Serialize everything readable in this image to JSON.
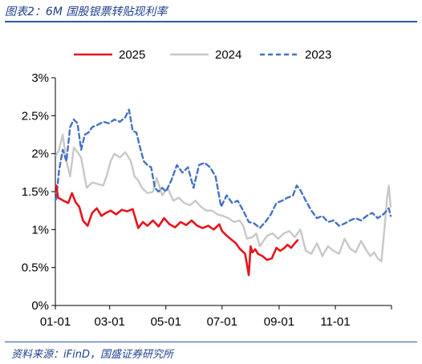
{
  "caption": "图表2：6M 国股银票转贴现利率",
  "source": "资料来源：iFinD，国盛证券研究所",
  "chart_data": {
    "type": "line",
    "title": "6M 国股银票转贴现利率",
    "xlabel": "",
    "ylabel": "",
    "x_tick_labels": [
      "01-01",
      "03-01",
      "05-01",
      "07-01",
      "09-01",
      "11-01"
    ],
    "x_tick_days": [
      0,
      59,
      120,
      181,
      243,
      304
    ],
    "xlim_days": [
      0,
      365
    ],
    "ylim": [
      0,
      3.0
    ],
    "y_ticks": [
      0,
      0.5,
      1.0,
      1.5,
      2.0,
      2.5,
      3.0
    ],
    "y_tick_labels": [
      "0%",
      "0.5%",
      "1%",
      "1.5%",
      "2%",
      "2.5%",
      "3%"
    ],
    "grid": false,
    "legend_position": "top",
    "series": [
      {
        "name": "2025",
        "color": "#e8141b",
        "style": "solid",
        "x": [
          1,
          3,
          6,
          9,
          14,
          18,
          22,
          26,
          30,
          35,
          40,
          45,
          50,
          55,
          60,
          66,
          72,
          78,
          84,
          90,
          95,
          100,
          106,
          112,
          118,
          124,
          130,
          136,
          142,
          148,
          154,
          160,
          166,
          172,
          178,
          181,
          186,
          192,
          196,
          200,
          206,
          210,
          212,
          214,
          217,
          220,
          225,
          230,
          235,
          240,
          244,
          248,
          252,
          256,
          260,
          263
        ],
        "values": [
          1.58,
          1.42,
          1.4,
          1.38,
          1.35,
          1.48,
          1.36,
          1.3,
          1.12,
          1.05,
          1.22,
          1.28,
          1.18,
          1.22,
          1.25,
          1.2,
          1.26,
          1.24,
          1.27,
          1.02,
          1.1,
          1.05,
          1.12,
          1.04,
          1.15,
          1.07,
          1.03,
          1.1,
          1.06,
          1.12,
          1.05,
          1.02,
          1.05,
          1.0,
          1.07,
          0.98,
          0.92,
          0.86,
          0.82,
          0.75,
          0.68,
          0.4,
          0.78,
          0.7,
          0.74,
          0.68,
          0.65,
          0.6,
          0.62,
          0.76,
          0.72,
          0.75,
          0.8,
          0.76,
          0.82,
          0.86
        ]
      },
      {
        "name": "2024",
        "color": "#c8c8c8",
        "style": "solid",
        "x": [
          1,
          4,
          8,
          12,
          16,
          20,
          24,
          28,
          34,
          40,
          46,
          52,
          56,
          60,
          64,
          70,
          76,
          82,
          86,
          90,
          94,
          100,
          106,
          110,
          116,
          122,
          128,
          134,
          140,
          146,
          152,
          158,
          164,
          170,
          176,
          182,
          188,
          194,
          200,
          204,
          208,
          214,
          218,
          222,
          226,
          230,
          236,
          242,
          248,
          254,
          260,
          266,
          272,
          278,
          284,
          290,
          296,
          302,
          308,
          314,
          320,
          326,
          332,
          338,
          342,
          346,
          350,
          354,
          358,
          360,
          362,
          364
        ],
        "values": [
          1.98,
          2.05,
          2.25,
          1.9,
          1.7,
          2.08,
          2.02,
          1.95,
          1.55,
          1.62,
          1.6,
          1.58,
          1.72,
          1.9,
          2.0,
          1.95,
          2.02,
          1.9,
          1.7,
          1.65,
          1.55,
          1.48,
          1.5,
          1.68,
          1.45,
          1.55,
          1.38,
          1.42,
          1.35,
          1.32,
          1.38,
          1.3,
          1.25,
          1.25,
          1.2,
          1.18,
          1.15,
          1.1,
          1.12,
          1.05,
          0.88,
          0.9,
          0.95,
          0.78,
          0.85,
          0.92,
          0.95,
          0.88,
          0.95,
          0.98,
          0.9,
          1.0,
          0.72,
          0.68,
          0.82,
          0.65,
          0.78,
          0.72,
          0.68,
          0.88,
          0.75,
          0.7,
          0.85,
          0.72,
          0.65,
          0.7,
          0.62,
          0.58,
          1.1,
          1.4,
          1.58,
          1.3
        ]
      },
      {
        "name": "2023",
        "color": "#4472c4",
        "style": "dashed",
        "x": [
          1,
          4,
          8,
          12,
          16,
          20,
          24,
          28,
          32,
          36,
          40,
          46,
          52,
          58,
          64,
          70,
          76,
          80,
          84,
          88,
          92,
          96,
          100,
          104,
          108,
          112,
          116,
          120,
          126,
          132,
          138,
          144,
          150,
          156,
          162,
          168,
          174,
          180,
          186,
          192,
          198,
          204,
          210,
          216,
          222,
          228,
          234,
          240,
          246,
          252,
          258,
          262,
          266,
          272,
          278,
          284,
          290,
          296,
          302,
          308,
          314,
          320,
          326,
          332,
          338,
          344,
          350,
          356,
          362,
          364
        ],
        "values": [
          1.4,
          1.78,
          2.05,
          1.9,
          2.35,
          2.45,
          2.4,
          2.05,
          2.25,
          2.28,
          2.35,
          2.38,
          2.42,
          2.4,
          2.45,
          2.42,
          2.48,
          2.58,
          2.3,
          2.28,
          2.08,
          1.9,
          1.85,
          1.82,
          1.55,
          1.5,
          1.55,
          1.5,
          1.65,
          1.85,
          1.75,
          1.82,
          1.55,
          1.85,
          1.88,
          1.82,
          1.7,
          1.3,
          1.45,
          1.35,
          1.38,
          1.25,
          1.1,
          1.08,
          1.02,
          1.1,
          1.2,
          1.35,
          1.38,
          1.42,
          1.45,
          1.58,
          1.52,
          1.38,
          1.25,
          1.15,
          1.18,
          1.1,
          1.12,
          1.05,
          1.08,
          1.12,
          1.15,
          1.12,
          1.18,
          1.22,
          1.15,
          1.2,
          1.28,
          1.18
        ]
      }
    ]
  }
}
